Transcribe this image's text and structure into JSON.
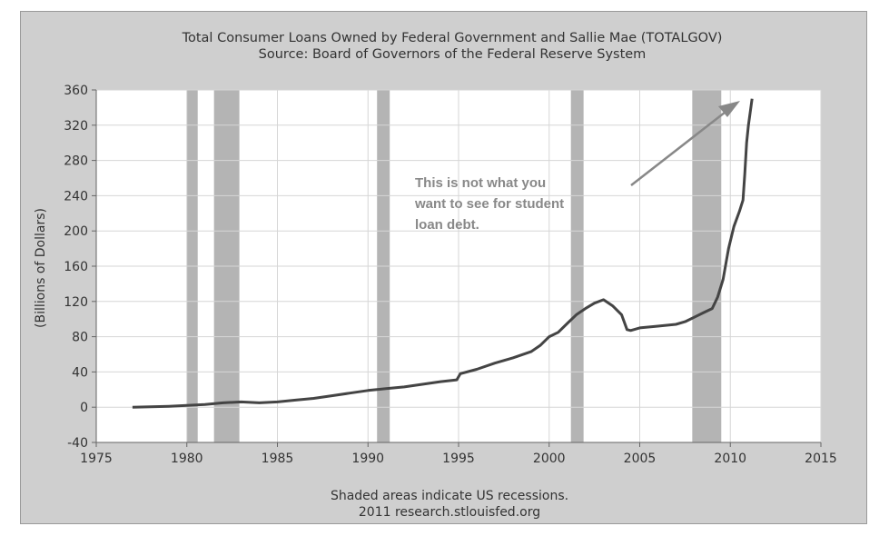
{
  "chart_data": {
    "type": "line",
    "title": "Total Consumer Loans Owned by Federal Government and Sallie Mae (TOTALGOV)",
    "subtitle": "Source: Board of Governors of the Federal Reserve System",
    "xlabel": "",
    "ylabel": "(Billions of Dollars)",
    "xlim": [
      1975,
      2015
    ],
    "ylim": [
      -40,
      360
    ],
    "x_ticks": [
      "1975",
      "1980",
      "1985",
      "1990",
      "1995",
      "2000",
      "2005",
      "2010",
      "2015"
    ],
    "y_ticks": [
      "360",
      "320",
      "280",
      "240",
      "200",
      "160",
      "120",
      "80",
      "40",
      "0",
      "-40"
    ],
    "grid": true,
    "recessions": [
      [
        1980.0,
        1980.6
      ],
      [
        1981.5,
        1982.9
      ],
      [
        1990.5,
        1991.2
      ],
      [
        2001.2,
        2001.9
      ],
      [
        2007.9,
        2009.5
      ]
    ],
    "series": [
      {
        "color": "#444444",
        "x": [
          1977.0,
          1978.0,
          1979.0,
          1980.0,
          1981.0,
          1982.0,
          1983.0,
          1984.0,
          1985.0,
          1986.0,
          1987.0,
          1988.0,
          1989.0,
          1990.0,
          1991.0,
          1992.0,
          1993.0,
          1994.0,
          1994.9,
          1995.1,
          1996.0,
          1997.0,
          1998.0,
          1999.0,
          1999.5,
          2000.0,
          2000.5,
          2001.0,
          2001.5,
          2002.0,
          2002.5,
          2003.0,
          2003.5,
          2004.0,
          2004.3,
          2004.5,
          2005.0,
          2006.0,
          2007.0,
          2007.5,
          2008.0,
          2008.5,
          2009.0,
          2009.3,
          2009.6,
          2009.9,
          2010.2,
          2010.5,
          2010.7,
          2010.8,
          2010.9,
          2011.0,
          2011.1,
          2011.2
        ],
        "values": [
          0,
          0.5,
          1,
          2,
          3,
          5,
          6,
          5,
          6,
          8,
          10,
          13,
          16,
          19,
          21,
          23,
          26,
          29,
          31,
          38,
          43,
          50,
          56,
          63,
          70,
          80,
          85,
          95,
          105,
          112,
          118,
          122,
          115,
          105,
          88,
          87,
          90,
          92,
          94,
          97,
          102,
          107,
          112,
          125,
          145,
          180,
          205,
          222,
          235,
          265,
          300,
          320,
          335,
          350
        ]
      }
    ],
    "annotations": [
      "This is not what you",
      "want to see for student",
      "loan debt."
    ],
    "footnotes": [
      "Shaded areas indicate US recessions.",
      "2011 research.stlouisfed.org"
    ]
  }
}
